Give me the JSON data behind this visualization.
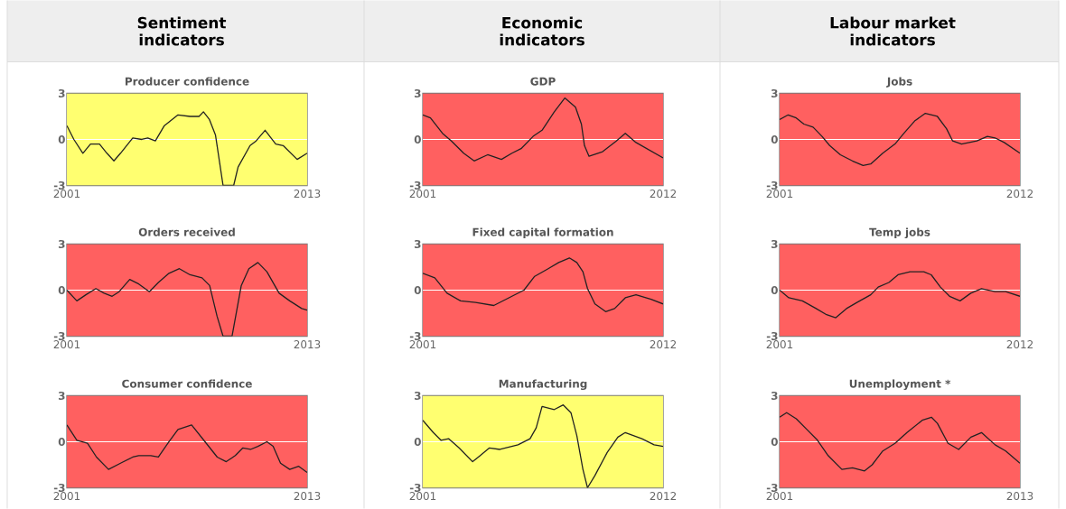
{
  "chart_data": [
    {
      "type": "other",
      "title": "Sentiment indicators"
    },
    {
      "type": "other",
      "title": "Economic indicators"
    },
    {
      "type": "other",
      "title": "Labour market indicators"
    },
    {
      "type": "line",
      "title": "Producer confidence",
      "color": "#222222",
      "xlim": [
        2001,
        2013
      ],
      "xticks": [
        2001,
        2013
      ],
      "ylim": [
        -3,
        3
      ],
      "yticks": [
        -3,
        0,
        3
      ],
      "bands": [
        {
          "axis": "y",
          "from": -3,
          "to": 3,
          "color": "#ffff70"
        }
      ],
      "ref_lines": [
        {
          "axis": "y",
          "value": 0,
          "color": "#ffffff"
        }
      ],
      "x": [
        2001,
        2001.35,
        2001.8,
        2002.18,
        2002.63,
        2003.0,
        2003.35,
        2003.68,
        2004.29,
        2004.74,
        2005.04,
        2005.42,
        2005.87,
        2006.55,
        2007.15,
        2007.6,
        2007.82,
        2008.12,
        2008.42,
        2008.8,
        2009.33,
        2009.55,
        2010.15,
        2010.45,
        2010.9,
        2011.43,
        2011.8,
        2012.5,
        2013
      ],
      "values": [
        0.9,
        0.0,
        -0.9,
        -0.3,
        -0.3,
        -0.9,
        -1.4,
        -0.9,
        0.1,
        0.0,
        0.1,
        -0.1,
        0.9,
        1.6,
        1.5,
        1.5,
        1.8,
        1.3,
        0.3,
        -3.0,
        -3.0,
        -1.8,
        -0.4,
        -0.1,
        0.6,
        -0.3,
        -0.4,
        -1.3,
        -0.9
      ]
    },
    {
      "type": "line",
      "title": "GDP",
      "color": "#222222",
      "xlim": [
        2001,
        2012
      ],
      "xticks": [
        2001,
        2012
      ],
      "ylim": [
        -3,
        3
      ],
      "yticks": [
        -3,
        0,
        3
      ],
      "bands": [
        {
          "axis": "y",
          "from": -3,
          "to": 3,
          "color": "#ff6060"
        }
      ],
      "ref_lines": [
        {
          "axis": "y",
          "value": 0,
          "color": "#ffffff"
        }
      ],
      "x": [
        2001,
        2001.35,
        2001.9,
        2002.31,
        2002.87,
        2003.35,
        2003.97,
        2004.6,
        2005.08,
        2005.5,
        2006.05,
        2006.46,
        2007.02,
        2007.5,
        2007.99,
        2008.26,
        2008.4,
        2008.61,
        2009.23,
        2009.86,
        2010.27,
        2010.76,
        2011.38,
        2012
      ],
      "values": [
        1.6,
        1.4,
        0.4,
        -0.1,
        -0.9,
        -1.4,
        -1.0,
        -1.3,
        -0.9,
        -0.6,
        0.2,
        0.6,
        1.8,
        2.7,
        2.1,
        1.0,
        -0.4,
        -1.1,
        -0.8,
        -0.1,
        0.4,
        -0.2,
        -0.7,
        -1.2
      ]
    },
    {
      "type": "line",
      "title": "Jobs",
      "color": "#222222",
      "xlim": [
        2001,
        2012
      ],
      "xticks": [
        2001,
        2012
      ],
      "ylim": [
        -3,
        3
      ],
      "yticks": [
        -3,
        0,
        3
      ],
      "bands": [
        {
          "axis": "y",
          "from": -3,
          "to": 3,
          "color": "#ff6060"
        }
      ],
      "ref_lines": [
        {
          "axis": "y",
          "value": 0,
          "color": "#ffffff"
        }
      ],
      "x": [
        2001,
        2001.39,
        2001.76,
        2002.11,
        2002.53,
        2002.94,
        2003.29,
        2003.78,
        2004.33,
        2004.82,
        2005.17,
        2005.72,
        2006.28,
        2006.69,
        2007.18,
        2007.67,
        2008.22,
        2008.64,
        2008.92,
        2009.33,
        2010.03,
        2010.51,
        2010.86,
        2011.28,
        2012
      ],
      "values": [
        1.3,
        1.6,
        1.4,
        1.0,
        0.8,
        0.2,
        -0.4,
        -1.0,
        -1.4,
        -1.7,
        -1.6,
        -0.9,
        -0.3,
        0.4,
        1.2,
        1.7,
        1.5,
        0.7,
        -0.1,
        -0.3,
        -0.1,
        0.2,
        0.1,
        -0.2,
        -0.9
      ]
    },
    {
      "type": "line",
      "title": "Orders received",
      "color": "#222222",
      "xlim": [
        2001,
        2013
      ],
      "xticks": [
        2001,
        2013
      ],
      "ylim": [
        -3,
        3
      ],
      "yticks": [
        -3,
        0,
        3
      ],
      "bands": [
        {
          "axis": "y",
          "from": -3,
          "to": 3,
          "color": "#ff6060"
        }
      ],
      "ref_lines": [
        {
          "axis": "y",
          "value": 0,
          "color": "#ffffff"
        }
      ],
      "x": [
        2001,
        2001.5,
        2001.95,
        2002.45,
        2002.86,
        2003.26,
        2003.61,
        2004.14,
        2004.59,
        2005.12,
        2005.57,
        2006.1,
        2006.62,
        2007.15,
        2007.75,
        2008.13,
        2008.5,
        2008.8,
        2009.25,
        2009.71,
        2010.09,
        2010.54,
        2010.99,
        2011.6,
        2012.13,
        2012.73,
        2013
      ],
      "values": [
        0.0,
        -0.7,
        -0.3,
        0.1,
        -0.2,
        -0.4,
        -0.1,
        0.7,
        0.4,
        -0.1,
        0.5,
        1.1,
        1.4,
        1.0,
        0.8,
        0.3,
        -1.7,
        -3.0,
        -3.0,
        0.3,
        1.4,
        1.8,
        1.2,
        -0.2,
        -0.7,
        -1.2,
        -1.3
      ]
    },
    {
      "type": "line",
      "title": "Fixed capital formation",
      "color": "#222222",
      "xlim": [
        2001,
        2012
      ],
      "xticks": [
        2001,
        2012
      ],
      "ylim": [
        -3,
        3
      ],
      "yticks": [
        -3,
        0,
        3
      ],
      "bands": [
        {
          "axis": "y",
          "from": -3,
          "to": 3,
          "color": "#ff6060"
        }
      ],
      "ref_lines": [
        {
          "axis": "y",
          "value": 0,
          "color": "#ffffff"
        }
      ],
      "x": [
        2001,
        2001.55,
        2002.11,
        2002.73,
        2003.42,
        2004.25,
        2004.94,
        2005.63,
        2006.12,
        2006.74,
        2007.22,
        2007.71,
        2008.05,
        2008.33,
        2008.54,
        2008.88,
        2009.37,
        2009.78,
        2010.27,
        2010.76,
        2011.45,
        2012
      ],
      "values": [
        1.1,
        0.8,
        -0.2,
        -0.7,
        -0.8,
        -1.0,
        -0.5,
        0.0,
        0.9,
        1.4,
        1.8,
        2.1,
        1.8,
        1.2,
        0.1,
        -0.9,
        -1.4,
        -1.2,
        -0.5,
        -0.3,
        -0.6,
        -0.9
      ]
    },
    {
      "type": "line",
      "title": "Temp jobs",
      "color": "#222222",
      "xlim": [
        2001,
        2012
      ],
      "xticks": [
        2001,
        2012
      ],
      "ylim": [
        -3,
        3
      ],
      "yticks": [
        -3,
        0,
        3
      ],
      "bands": [
        {
          "axis": "y",
          "from": -3,
          "to": 3,
          "color": "#ff6060"
        }
      ],
      "ref_lines": [
        {
          "axis": "y",
          "value": 0,
          "color": "#ffffff"
        }
      ],
      "x": [
        2001,
        2001.42,
        2002.04,
        2002.67,
        2003.15,
        2003.57,
        2004.06,
        2004.54,
        2005.17,
        2005.51,
        2006.0,
        2006.42,
        2006.97,
        2007.6,
        2007.94,
        2008.36,
        2008.78,
        2009.26,
        2009.75,
        2010.24,
        2010.86,
        2011.35,
        2012
      ],
      "values": [
        0.0,
        -0.5,
        -0.7,
        -1.2,
        -1.6,
        -1.8,
        -1.2,
        -0.8,
        -0.3,
        0.2,
        0.5,
        1.0,
        1.2,
        1.2,
        1.0,
        0.2,
        -0.4,
        -0.7,
        -0.2,
        0.1,
        -0.1,
        -0.1,
        -0.4
      ]
    },
    {
      "type": "line",
      "title": "Consumer confidence",
      "color": "#222222",
      "xlim": [
        2001,
        2013
      ],
      "xticks": [
        2001,
        2013
      ],
      "ylim": [
        -3,
        3
      ],
      "yticks": [
        -3,
        0,
        3
      ],
      "bands": [
        {
          "axis": "y",
          "from": -3,
          "to": 3,
          "color": "#ff6060"
        }
      ],
      "ref_lines": [
        {
          "axis": "y",
          "value": 0,
          "color": "#ffffff"
        }
      ],
      "x": [
        2001,
        2001.5,
        2002.03,
        2002.48,
        2003.08,
        2003.68,
        2004.29,
        2004.59,
        2005.19,
        2005.57,
        2006.1,
        2006.55,
        2007.23,
        2007.9,
        2008.51,
        2008.96,
        2009.41,
        2009.79,
        2010.17,
        2010.54,
        2010.99,
        2011.3,
        2011.67,
        2012.13,
        2012.58,
        2013
      ],
      "values": [
        1.1,
        0.1,
        -0.1,
        -1.0,
        -1.8,
        -1.4,
        -1.0,
        -0.9,
        -0.9,
        -1.0,
        0.0,
        0.8,
        1.1,
        0.0,
        -1.0,
        -1.3,
        -0.9,
        -0.4,
        -0.5,
        -0.3,
        0.0,
        -0.3,
        -1.4,
        -1.8,
        -1.6,
        -2.0
      ]
    },
    {
      "type": "line",
      "title": "Manufacturing",
      "color": "#222222",
      "xlim": [
        2001,
        2012
      ],
      "xticks": [
        2001,
        2012
      ],
      "ylim": [
        -3,
        3
      ],
      "yticks": [
        -3,
        0,
        3
      ],
      "bands": [
        {
          "axis": "y",
          "from": -3,
          "to": 3,
          "color": "#ffff70"
        }
      ],
      "ref_lines": [
        {
          "axis": "y",
          "value": 0,
          "color": "#ffffff"
        }
      ],
      "x": [
        2001,
        2001.48,
        2001.83,
        2002.18,
        2002.66,
        2003.28,
        2003.63,
        2004.05,
        2004.53,
        2005.36,
        2005.91,
        2006.19,
        2006.46,
        2007.02,
        2007.43,
        2007.78,
        2008.05,
        2008.33,
        2008.54,
        2008.88,
        2009.44,
        2009.93,
        2010.27,
        2011.03,
        2011.59,
        2012
      ],
      "values": [
        1.4,
        0.6,
        0.1,
        0.2,
        -0.4,
        -1.3,
        -0.9,
        -0.4,
        -0.5,
        -0.2,
        0.2,
        0.9,
        2.3,
        2.1,
        2.4,
        1.9,
        0.4,
        -1.8,
        -3.0,
        -2.2,
        -0.7,
        0.3,
        0.6,
        0.2,
        -0.2,
        -0.3
      ]
    },
    {
      "type": "line",
      "title": "Unemployment *",
      "color": "#222222",
      "xlim": [
        2001,
        2013
      ],
      "xticks": [
        2001,
        2013
      ],
      "ylim": [
        -3,
        3
      ],
      "yticks": [
        -3,
        0,
        3
      ],
      "bands": [
        {
          "axis": "y",
          "from": -3,
          "to": 3,
          "color": "#ff6060"
        }
      ],
      "ref_lines": [
        {
          "axis": "y",
          "value": 0,
          "color": "#ffffff"
        }
      ],
      "x": [
        2001,
        2001.35,
        2001.83,
        2002.36,
        2002.89,
        2003.42,
        2004.11,
        2004.64,
        2005.24,
        2005.62,
        2006.15,
        2006.76,
        2007.36,
        2008.12,
        2008.58,
        2008.88,
        2009.41,
        2009.94,
        2010.55,
        2011.08,
        2011.76,
        2012.29,
        2013
      ],
      "values": [
        1.6,
        1.9,
        1.5,
        0.8,
        0.1,
        -0.9,
        -1.8,
        -1.7,
        -1.9,
        -1.5,
        -0.6,
        -0.1,
        0.6,
        1.4,
        1.6,
        1.2,
        -0.1,
        -0.5,
        0.3,
        0.6,
        -0.2,
        -0.6,
        -1.4
      ]
    }
  ]
}
